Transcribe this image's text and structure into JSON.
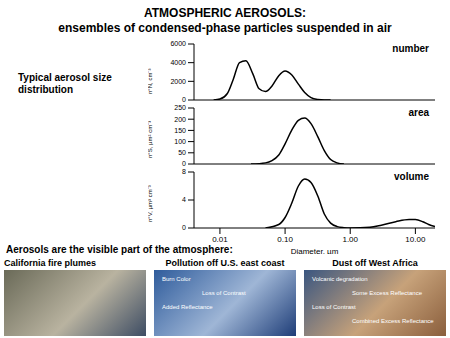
{
  "title": "ATMOSPHERIC AEROSOLS:",
  "subtitle": "ensembles of condensed-phase particles suspended in air",
  "side_label": "Typical aerosol size distribution",
  "caption": "Aerosols are the visible part of the atmosphere:",
  "images": [
    {
      "caption": "California fire plumes",
      "labels": [],
      "colors": [
        "#6a6a58",
        "#b9b3a0",
        "#3d4c63"
      ]
    },
    {
      "caption": "Pollution off U.S. east coast",
      "labels": [
        "Burn Color",
        "Loss of Contrast",
        "Added Reflectance"
      ],
      "colors": [
        "#2f5c9c",
        "#9fb6d6",
        "#1e3d78"
      ]
    },
    {
      "caption": "Dust off West Africa",
      "labels": [
        "Volcanic degradation",
        "Some Excess Reflectance",
        "Loss of Contrast",
        "Combined Excess Reflectance"
      ],
      "colors": [
        "#3a5680",
        "#c7a27a",
        "#8a5e3c"
      ]
    }
  ],
  "chart_data": [
    {
      "type": "line",
      "annotation": "number",
      "y_label": "n°N, cm⁻³",
      "x": [
        0.008,
        0.01,
        0.013,
        0.016,
        0.02,
        0.025,
        0.032,
        0.04,
        0.05,
        0.063,
        0.08,
        0.1,
        0.126,
        0.16,
        0.2,
        0.25,
        0.32,
        0.4,
        0.5
      ],
      "values": [
        0,
        100,
        700,
        2200,
        4000,
        4200,
        2800,
        1200,
        900,
        1500,
        2600,
        3100,
        2700,
        1700,
        800,
        250,
        50,
        0,
        0
      ],
      "color": "#000000",
      "log": "x",
      "xlim": [
        0.004,
        20
      ],
      "xticks": [
        0.01,
        0.1,
        1,
        10
      ],
      "ylim": [
        0,
        6000
      ],
      "yticks": [
        0,
        2000,
        4000,
        6000
      ],
      "tick_labels": "y"
    },
    {
      "type": "line",
      "annotation": "area",
      "y_label": "n°S, µm² cm⁻³",
      "x": [
        0.03,
        0.05,
        0.063,
        0.08,
        0.1,
        0.126,
        0.16,
        0.2,
        0.25,
        0.32,
        0.4,
        0.5,
        0.63,
        0.8
      ],
      "values": [
        0,
        5,
        15,
        40,
        90,
        150,
        195,
        205,
        180,
        120,
        60,
        20,
        5,
        0
      ],
      "color": "#000000",
      "log": "x",
      "xlim": [
        0.004,
        20
      ],
      "xticks": [
        0.01,
        0.1,
        1,
        10
      ],
      "ylim": [
        0,
        250
      ],
      "yticks": [
        0,
        50,
        100,
        150,
        200,
        250
      ],
      "tick_labels": "y"
    },
    {
      "type": "line",
      "annotation": "volume",
      "y_label": "n°V, µm³ cm⁻³",
      "x_label": "Diameter, µm",
      "x": [
        0.05,
        0.08,
        0.1,
        0.126,
        0.16,
        0.2,
        0.25,
        0.32,
        0.4,
        0.5,
        0.63,
        0.8,
        1,
        2,
        3,
        5,
        8,
        10,
        13,
        16,
        20
      ],
      "values": [
        0,
        0.5,
        1.5,
        3.5,
        6,
        7,
        6.5,
        4.5,
        2,
        0.7,
        0.2,
        0.05,
        0,
        0.1,
        0.4,
        0.9,
        1.2,
        1.2,
        0.9,
        0.5,
        0.2
      ],
      "color": "#000000",
      "log": "x",
      "xlim": [
        0.004,
        20
      ],
      "xticks": [
        {
          "value": 0.01,
          "label": "0.01"
        },
        {
          "value": 0.1,
          "label": "0.10"
        },
        {
          "value": 1,
          "label": "1.00"
        },
        {
          "value": 10,
          "label": "10.00"
        }
      ],
      "ylim": [
        0,
        8
      ],
      "yticks": [
        0,
        4,
        8
      ],
      "tick_labels": true
    }
  ]
}
